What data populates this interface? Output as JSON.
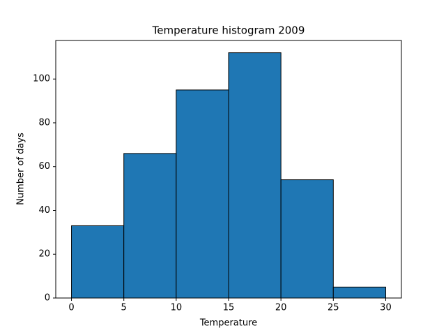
{
  "chart_data": {
    "type": "histogram",
    "title": "Temperature histogram 2009",
    "xlabel": "Temperature",
    "ylabel": "Number of days",
    "bins": [
      0,
      5,
      10,
      15,
      20,
      25,
      30
    ],
    "values": [
      33,
      66,
      95,
      112,
      54,
      5
    ],
    "color": "#1f77b4",
    "edgecolor": "#000000",
    "xlim": [
      -1.5,
      31.5
    ],
    "xticks": [
      0,
      5,
      10,
      15,
      20,
      25,
      30
    ],
    "ylim": [
      0,
      117.6
    ],
    "yticks": [
      0,
      20,
      40,
      60,
      80,
      100
    ],
    "grid": false
  }
}
